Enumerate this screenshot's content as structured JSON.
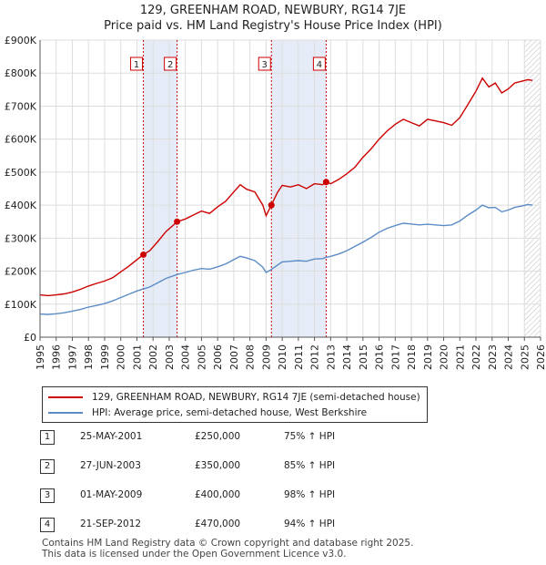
{
  "title_line1": "129, GREENHAM ROAD, NEWBURY, RG14 7JE",
  "title_line2": "Price paid vs. HM Land Registry's House Price Index (HPI)",
  "colors": {
    "property": "#cc0000",
    "hpi": "#5b8cc6",
    "shade": "#e6ecf7",
    "grid": "#dddddd"
  },
  "chart_data": {
    "type": "line",
    "xlim": [
      1995,
      2026
    ],
    "ylim": [
      0,
      900000
    ],
    "y_ticks": [
      {
        "value": 0,
        "label": "£0"
      },
      {
        "value": 100000,
        "label": "£100K"
      },
      {
        "value": 200000,
        "label": "£200K"
      },
      {
        "value": 300000,
        "label": "£300K"
      },
      {
        "value": 400000,
        "label": "£400K"
      },
      {
        "value": 500000,
        "label": "£500K"
      },
      {
        "value": 600000,
        "label": "£600K"
      },
      {
        "value": 700000,
        "label": "£700K"
      },
      {
        "value": 800000,
        "label": "£800K"
      },
      {
        "value": 900000,
        "label": "£900K"
      }
    ],
    "x_ticks": [
      "1995",
      "1996",
      "1997",
      "1998",
      "1999",
      "2000",
      "2001",
      "2002",
      "2003",
      "2004",
      "2005",
      "2006",
      "2007",
      "2008",
      "2009",
      "2010",
      "2011",
      "2012",
      "2013",
      "2014",
      "2015",
      "2016",
      "2017",
      "2018",
      "2019",
      "2020",
      "2021",
      "2022",
      "2023",
      "2024",
      "2025",
      "2026"
    ],
    "shaded_ranges": [
      [
        2001.4,
        2003.5
      ],
      [
        2009.33,
        2012.72
      ]
    ],
    "hatched_from": 2025.0,
    "series": [
      {
        "name": "129, GREENHAM ROAD, NEWBURY, RG14 7JE (semi-detached house)",
        "color": "#cc0000",
        "points": [
          [
            1995.0,
            128000
          ],
          [
            1995.5,
            126000
          ],
          [
            1996.0,
            128000
          ],
          [
            1996.5,
            131000
          ],
          [
            1997.0,
            137000
          ],
          [
            1997.5,
            145000
          ],
          [
            1998.0,
            155000
          ],
          [
            1998.5,
            163000
          ],
          [
            1999.0,
            170000
          ],
          [
            1999.5,
            180000
          ],
          [
            2000.0,
            198000
          ],
          [
            2000.5,
            215000
          ],
          [
            2001.0,
            235000
          ],
          [
            2001.4,
            250000
          ],
          [
            2001.8,
            262000
          ],
          [
            2002.3,
            290000
          ],
          [
            2002.8,
            320000
          ],
          [
            2003.5,
            350000
          ],
          [
            2004.0,
            358000
          ],
          [
            2004.5,
            370000
          ],
          [
            2005.0,
            382000
          ],
          [
            2005.5,
            375000
          ],
          [
            2006.0,
            395000
          ],
          [
            2006.5,
            412000
          ],
          [
            2007.0,
            440000
          ],
          [
            2007.4,
            462000
          ],
          [
            2007.8,
            448000
          ],
          [
            2008.3,
            440000
          ],
          [
            2008.8,
            400000
          ],
          [
            2009.0,
            368000
          ],
          [
            2009.33,
            400000
          ],
          [
            2009.7,
            438000
          ],
          [
            2010.0,
            460000
          ],
          [
            2010.5,
            455000
          ],
          [
            2011.0,
            462000
          ],
          [
            2011.5,
            450000
          ],
          [
            2012.0,
            465000
          ],
          [
            2012.5,
            462000
          ],
          [
            2012.72,
            470000
          ],
          [
            2013.0,
            465000
          ],
          [
            2013.5,
            478000
          ],
          [
            2014.0,
            495000
          ],
          [
            2014.5,
            515000
          ],
          [
            2015.0,
            545000
          ],
          [
            2015.5,
            570000
          ],
          [
            2016.0,
            600000
          ],
          [
            2016.5,
            625000
          ],
          [
            2017.0,
            645000
          ],
          [
            2017.5,
            660000
          ],
          [
            2018.0,
            650000
          ],
          [
            2018.5,
            640000
          ],
          [
            2019.0,
            660000
          ],
          [
            2019.5,
            655000
          ],
          [
            2020.0,
            650000
          ],
          [
            2020.5,
            642000
          ],
          [
            2021.0,
            665000
          ],
          [
            2021.5,
            705000
          ],
          [
            2022.0,
            745000
          ],
          [
            2022.4,
            785000
          ],
          [
            2022.8,
            758000
          ],
          [
            2023.2,
            770000
          ],
          [
            2023.6,
            740000
          ],
          [
            2024.0,
            752000
          ],
          [
            2024.4,
            770000
          ],
          [
            2024.8,
            775000
          ],
          [
            2025.2,
            780000
          ],
          [
            2025.5,
            778000
          ]
        ]
      },
      {
        "name": "HPI: Average price, semi-detached house, West Berkshire",
        "color": "#5b8cc6",
        "points": [
          [
            1995.0,
            70000
          ],
          [
            1995.5,
            69000
          ],
          [
            1996.0,
            71000
          ],
          [
            1996.5,
            74000
          ],
          [
            1997.0,
            79000
          ],
          [
            1997.5,
            84000
          ],
          [
            1998.0,
            91000
          ],
          [
            1998.5,
            96000
          ],
          [
            1999.0,
            102000
          ],
          [
            1999.5,
            110000
          ],
          [
            2000.0,
            120000
          ],
          [
            2000.5,
            130000
          ],
          [
            2001.0,
            140000
          ],
          [
            2001.4,
            146000
          ],
          [
            2001.8,
            152000
          ],
          [
            2002.3,
            165000
          ],
          [
            2002.8,
            178000
          ],
          [
            2003.5,
            190000
          ],
          [
            2004.0,
            196000
          ],
          [
            2004.5,
            203000
          ],
          [
            2005.0,
            208000
          ],
          [
            2005.5,
            206000
          ],
          [
            2006.0,
            213000
          ],
          [
            2006.5,
            222000
          ],
          [
            2007.0,
            235000
          ],
          [
            2007.4,
            245000
          ],
          [
            2007.8,
            240000
          ],
          [
            2008.3,
            232000
          ],
          [
            2008.8,
            212000
          ],
          [
            2009.0,
            196000
          ],
          [
            2009.33,
            205000
          ],
          [
            2009.7,
            218000
          ],
          [
            2010.0,
            228000
          ],
          [
            2010.5,
            230000
          ],
          [
            2011.0,
            232000
          ],
          [
            2011.5,
            230000
          ],
          [
            2012.0,
            237000
          ],
          [
            2012.5,
            238000
          ],
          [
            2012.72,
            242000
          ],
          [
            2013.0,
            245000
          ],
          [
            2013.5,
            252000
          ],
          [
            2014.0,
            262000
          ],
          [
            2014.5,
            275000
          ],
          [
            2015.0,
            288000
          ],
          [
            2015.5,
            302000
          ],
          [
            2016.0,
            318000
          ],
          [
            2016.5,
            330000
          ],
          [
            2017.0,
            338000
          ],
          [
            2017.5,
            345000
          ],
          [
            2018.0,
            343000
          ],
          [
            2018.5,
            340000
          ],
          [
            2019.0,
            342000
          ],
          [
            2019.5,
            340000
          ],
          [
            2020.0,
            338000
          ],
          [
            2020.5,
            340000
          ],
          [
            2021.0,
            352000
          ],
          [
            2021.5,
            370000
          ],
          [
            2022.0,
            385000
          ],
          [
            2022.4,
            400000
          ],
          [
            2022.8,
            392000
          ],
          [
            2023.2,
            393000
          ],
          [
            2023.6,
            380000
          ],
          [
            2024.0,
            385000
          ],
          [
            2024.4,
            393000
          ],
          [
            2024.8,
            397000
          ],
          [
            2025.2,
            402000
          ],
          [
            2025.5,
            400000
          ]
        ]
      }
    ],
    "sale_markers": [
      {
        "num": "1",
        "x": 2001.4,
        "value": 250000
      },
      {
        "num": "2",
        "x": 2003.49,
        "value": 350000
      },
      {
        "num": "3",
        "x": 2009.33,
        "value": 400000
      },
      {
        "num": "4",
        "x": 2012.72,
        "value": 470000
      }
    ]
  },
  "legend": {
    "property_label": "129, GREENHAM ROAD, NEWBURY, RG14 7JE (semi-detached house)",
    "hpi_label": "HPI: Average price, semi-detached house, West Berkshire"
  },
  "sales": [
    {
      "num": "1",
      "date": "25-MAY-2001",
      "price": "£250,000",
      "hpi": "75% ↑ HPI"
    },
    {
      "num": "2",
      "date": "27-JUN-2003",
      "price": "£350,000",
      "hpi": "85% ↑ HPI"
    },
    {
      "num": "3",
      "date": "01-MAY-2009",
      "price": "£400,000",
      "hpi": "98% ↑ HPI"
    },
    {
      "num": "4",
      "date": "21-SEP-2012",
      "price": "£470,000",
      "hpi": "94% ↑ HPI"
    }
  ],
  "footer_line1": "Contains HM Land Registry data © Crown copyright and database right 2025.",
  "footer_line2": "This data is licensed under the Open Government Licence v3.0."
}
